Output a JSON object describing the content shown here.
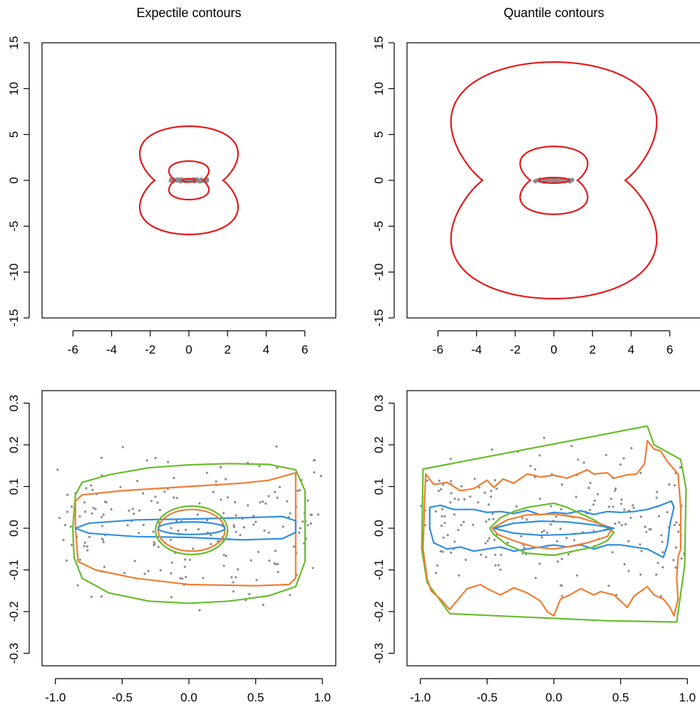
{
  "chart_data": [
    {
      "type": "contour",
      "title": "Expectile contours",
      "xlim": [
        -7.6,
        7.6
      ],
      "ylim": [
        -15,
        15
      ],
      "xticks": [
        -6,
        -4,
        -2,
        0,
        2,
        4,
        6
      ],
      "yticks": [
        -15,
        -10,
        -5,
        0,
        5,
        10,
        15
      ],
      "xticklabels": [
        "-6",
        "-4",
        "-2",
        "0",
        "2",
        "4",
        "6"
      ],
      "yticklabels": [
        "-15",
        "-10",
        "-5",
        "0",
        "5",
        "10",
        "15"
      ],
      "grid": false,
      "points_color": "#8c8c8c",
      "contours": [
        {
          "shape": "twolobe",
          "color": "#e31a1c",
          "halfwidth": 3.2,
          "height": 5.9,
          "waist": 0.45
        },
        {
          "shape": "twolobe",
          "color": "#e31a1c",
          "halfwidth": 1.3,
          "height": 2.1,
          "waist": 0.25
        },
        {
          "shape": "ellipse",
          "color": "#e31a1c",
          "rx": 0.35,
          "ry": 0.18
        }
      ],
      "points_range": {
        "x": [
          -1,
          1
        ],
        "y": [
          -0.25,
          0.25
        ]
      }
    },
    {
      "type": "contour",
      "title": "Quantile contours",
      "xlim": [
        -7.6,
        7.6
      ],
      "ylim": [
        -15,
        15
      ],
      "xticks": [
        -6,
        -4,
        -2,
        0,
        2,
        4,
        6
      ],
      "yticks": [
        -15,
        -10,
        -5,
        0,
        5,
        10,
        15
      ],
      "xticklabels": [
        "-6",
        "-4",
        "-2",
        "0",
        "2",
        "4",
        "6"
      ],
      "yticklabels": [
        "-15",
        "-10",
        "-5",
        "0",
        "5",
        "10",
        "15"
      ],
      "grid": false,
      "points_color": "#8c8c8c",
      "contours": [
        {
          "shape": "twolobe",
          "color": "#e31a1c",
          "halfwidth": 6.7,
          "height": 12.9,
          "waist": 0.35
        },
        {
          "shape": "twolobe",
          "color": "#e31a1c",
          "halfwidth": 2.2,
          "height": 3.7,
          "waist": 0.3
        },
        {
          "shape": "ellipse",
          "color": "#e31a1c",
          "rx": 0.8,
          "ry": 0.3
        }
      ],
      "points_range": {
        "x": [
          -1,
          1
        ],
        "y": [
          -0.25,
          0.25
        ]
      }
    },
    {
      "type": "contour",
      "title": "",
      "xlim": [
        -1.1,
        1.1
      ],
      "ylim": [
        -0.33,
        0.33
      ],
      "xticks": [
        -1.0,
        -0.5,
        0.0,
        0.5,
        1.0
      ],
      "yticks": [
        -0.3,
        -0.2,
        -0.1,
        0.0,
        0.1,
        0.2,
        0.3
      ],
      "xticklabels": [
        "-1.0",
        "-0.5",
        "0.0",
        "0.5",
        "1.0"
      ],
      "yticklabels": [
        "-0.3",
        "-0.2",
        "-0.1",
        "0.0",
        "0.1",
        "0.2",
        "0.3"
      ],
      "grid": false,
      "points_color": "#8c8c8c",
      "contours": [
        {
          "color": "#66bd2a",
          "points": [
            [
              -0.85,
              0.08
            ],
            [
              -0.8,
              0.11
            ],
            [
              -0.6,
              0.128
            ],
            [
              -0.3,
              0.145
            ],
            [
              0.0,
              0.152
            ],
            [
              0.3,
              0.155
            ],
            [
              0.6,
              0.153
            ],
            [
              0.8,
              0.14
            ],
            [
              0.87,
              0.09
            ],
            [
              0.87,
              -0.08
            ],
            [
              0.8,
              -0.14
            ],
            [
              0.6,
              -0.162
            ],
            [
              0.3,
              -0.175
            ],
            [
              0.0,
              -0.18
            ],
            [
              -0.3,
              -0.175
            ],
            [
              -0.6,
              -0.155
            ],
            [
              -0.8,
              -0.12
            ],
            [
              -0.86,
              -0.07
            ],
            [
              -0.87,
              0.0
            ]
          ]
        },
        {
          "color": "#f07d32",
          "points": [
            [
              -0.85,
              0.065
            ],
            [
              -0.8,
              0.08
            ],
            [
              -0.5,
              0.09
            ],
            [
              0.0,
              0.1
            ],
            [
              0.4,
              0.108
            ],
            [
              0.6,
              0.115
            ],
            [
              0.8,
              0.133
            ],
            [
              0.8,
              0.12
            ],
            [
              0.8,
              -0.12
            ],
            [
              0.75,
              -0.135
            ],
            [
              0.5,
              -0.138
            ],
            [
              0.0,
              -0.135
            ],
            [
              -0.4,
              -0.12
            ],
            [
              -0.7,
              -0.1
            ],
            [
              -0.83,
              -0.08
            ],
            [
              -0.85,
              0.0
            ]
          ]
        },
        {
          "color": "#2f8ee0",
          "points": [
            [
              -0.85,
              0.0
            ],
            [
              -0.75,
              0.012
            ],
            [
              -0.4,
              0.02
            ],
            [
              0.0,
              0.022
            ],
            [
              0.4,
              0.025
            ],
            [
              0.7,
              0.028
            ],
            [
              0.8,
              0.018
            ],
            [
              0.8,
              -0.01
            ],
            [
              0.7,
              -0.025
            ],
            [
              0.4,
              -0.028
            ],
            [
              0.0,
              -0.022
            ],
            [
              -0.4,
              -0.02
            ],
            [
              -0.75,
              -0.012
            ]
          ]
        },
        {
          "shape": "ellipse",
          "color": "#66bd2a",
          "cx": 0.02,
          "cy": -0.005,
          "rx": 0.27,
          "ry": 0.058
        },
        {
          "shape": "ellipse",
          "color": "#f07d32",
          "cx": 0.02,
          "cy": -0.005,
          "rx": 0.25,
          "ry": 0.05
        },
        {
          "shape": "ellipse",
          "color": "#2f8ee0",
          "cx": 0.02,
          "cy": 0.0,
          "rx": 0.25,
          "ry": 0.015
        }
      ],
      "points_range": {
        "x": [
          -1,
          1
        ],
        "y": [
          -0.23,
          0.25
        ]
      }
    },
    {
      "type": "contour",
      "title": "",
      "xlim": [
        -1.1,
        1.1
      ],
      "ylim": [
        -0.33,
        0.33
      ],
      "xticks": [
        -1.0,
        -0.5,
        0.0,
        0.5,
        1.0
      ],
      "yticks": [
        -0.3,
        -0.2,
        -0.1,
        0.0,
        0.1,
        0.2,
        0.3
      ],
      "xticklabels": [
        "-1.0",
        "-0.5",
        "0.0",
        "0.5",
        "1.0"
      ],
      "yticklabels": [
        "-0.3",
        "-0.2",
        "-0.1",
        "0.0",
        "0.1",
        "0.2",
        "0.3"
      ],
      "grid": false,
      "points_color": "#8c8c8c",
      "contours": [
        {
          "color": "#66bd2a",
          "points": [
            [
              -0.98,
              0.142
            ],
            [
              0.7,
              0.245
            ],
            [
              0.75,
              0.2
            ],
            [
              0.95,
              0.165
            ],
            [
              0.99,
              0.095
            ],
            [
              0.98,
              -0.09
            ],
            [
              0.92,
              -0.225
            ],
            [
              0.4,
              -0.222
            ],
            [
              -0.78,
              -0.205
            ],
            [
              -0.95,
              -0.13
            ],
            [
              -0.99,
              -0.05
            ]
          ]
        },
        {
          "color": "#f07d32",
          "points": [
            [
              -0.96,
              0.13
            ],
            [
              -0.9,
              0.105
            ],
            [
              -0.8,
              0.11
            ],
            [
              -0.7,
              0.09
            ],
            [
              -0.6,
              0.095
            ],
            [
              -0.5,
              0.115
            ],
            [
              -0.45,
              0.098
            ],
            [
              -0.38,
              0.118
            ],
            [
              -0.3,
              0.108
            ],
            [
              -0.2,
              0.13
            ],
            [
              -0.1,
              0.123
            ],
            [
              0.0,
              0.127
            ],
            [
              0.1,
              0.12
            ],
            [
              0.2,
              0.133
            ],
            [
              0.25,
              0.14
            ],
            [
              0.3,
              0.13
            ],
            [
              0.4,
              0.133
            ],
            [
              0.45,
              0.12
            ],
            [
              0.55,
              0.128
            ],
            [
              0.62,
              0.13
            ],
            [
              0.68,
              0.155
            ],
            [
              0.7,
              0.21
            ],
            [
              0.75,
              0.19
            ],
            [
              0.8,
              0.185
            ],
            [
              0.85,
              0.16
            ],
            [
              0.93,
              0.13
            ],
            [
              0.95,
              0.05
            ],
            [
              0.95,
              -0.05
            ],
            [
              0.93,
              -0.07
            ],
            [
              0.92,
              -0.12
            ],
            [
              0.93,
              -0.17
            ],
            [
              0.9,
              -0.21
            ],
            [
              0.87,
              -0.19
            ],
            [
              0.82,
              -0.17
            ],
            [
              0.75,
              -0.16
            ],
            [
              0.7,
              -0.14
            ],
            [
              0.6,
              -0.163
            ],
            [
              0.55,
              -0.19
            ],
            [
              0.45,
              -0.16
            ],
            [
              0.35,
              -0.152
            ],
            [
              0.3,
              -0.16
            ],
            [
              0.2,
              -0.145
            ],
            [
              0.12,
              -0.16
            ],
            [
              0.05,
              -0.17
            ],
            [
              0.0,
              -0.21
            ],
            [
              -0.05,
              -0.2
            ],
            [
              -0.1,
              -0.175
            ],
            [
              -0.2,
              -0.155
            ],
            [
              -0.3,
              -0.143
            ],
            [
              -0.4,
              -0.16
            ],
            [
              -0.5,
              -0.145
            ],
            [
              -0.55,
              -0.135
            ],
            [
              -0.65,
              -0.145
            ],
            [
              -0.78,
              -0.195
            ],
            [
              -0.85,
              -0.17
            ],
            [
              -0.92,
              -0.15
            ],
            [
              -0.95,
              -0.12
            ],
            [
              -0.98,
              -0.05
            ],
            [
              -0.97,
              0.05
            ]
          ]
        },
        {
          "color": "#2f8ee0",
          "points": [
            [
              -0.93,
              0.05
            ],
            [
              -0.85,
              0.055
            ],
            [
              -0.75,
              0.045
            ],
            [
              -0.6,
              0.045
            ],
            [
              -0.5,
              0.038
            ],
            [
              -0.4,
              0.04
            ],
            [
              -0.3,
              0.035
            ],
            [
              -0.2,
              0.043
            ],
            [
              -0.1,
              0.032
            ],
            [
              0.0,
              0.038
            ],
            [
              0.1,
              0.035
            ],
            [
              0.2,
              0.042
            ],
            [
              0.3,
              0.033
            ],
            [
              0.4,
              0.04
            ],
            [
              0.5,
              0.038
            ],
            [
              0.6,
              0.04
            ],
            [
              0.7,
              0.045
            ],
            [
              0.8,
              0.055
            ],
            [
              0.88,
              0.065
            ],
            [
              0.9,
              0.05
            ],
            [
              0.87,
              0.01
            ],
            [
              0.85,
              -0.04
            ],
            [
              0.82,
              -0.07
            ],
            [
              0.7,
              -0.05
            ],
            [
              0.6,
              -0.045
            ],
            [
              0.5,
              -0.04
            ],
            [
              0.4,
              -0.04
            ],
            [
              0.3,
              -0.05
            ],
            [
              0.2,
              -0.04
            ],
            [
              0.1,
              -0.045
            ],
            [
              0.0,
              -0.04
            ],
            [
              -0.1,
              -0.045
            ],
            [
              -0.2,
              -0.05
            ],
            [
              -0.3,
              -0.055
            ],
            [
              -0.4,
              -0.045
            ],
            [
              -0.5,
              -0.05
            ],
            [
              -0.6,
              -0.055
            ],
            [
              -0.7,
              -0.045
            ],
            [
              -0.8,
              -0.05
            ],
            [
              -0.9,
              -0.035
            ],
            [
              -0.93,
              0.0
            ]
          ]
        },
        {
          "color": "#66bd2a",
          "points": [
            [
              -0.48,
              0.0
            ],
            [
              -0.4,
              0.025
            ],
            [
              -0.3,
              0.04
            ],
            [
              -0.2,
              0.05
            ],
            [
              0.0,
              0.06
            ],
            [
              0.1,
              0.05
            ],
            [
              0.3,
              0.02
            ],
            [
              0.45,
              -0.01
            ],
            [
              0.4,
              -0.03
            ],
            [
              0.3,
              -0.045
            ],
            [
              0.1,
              -0.058
            ],
            [
              0.0,
              -0.065
            ],
            [
              -0.2,
              -0.06
            ],
            [
              -0.35,
              -0.04
            ],
            [
              -0.45,
              -0.015
            ]
          ]
        },
        {
          "color": "#f07d32",
          "points": [
            [
              -0.46,
              0.0
            ],
            [
              -0.35,
              0.02
            ],
            [
              -0.2,
              0.032
            ],
            [
              0.0,
              0.034
            ],
            [
              0.2,
              0.025
            ],
            [
              0.35,
              0.01
            ],
            [
              0.44,
              0.0
            ],
            [
              0.4,
              -0.02
            ],
            [
              0.25,
              -0.035
            ],
            [
              0.1,
              -0.045
            ],
            [
              0.0,
              -0.05
            ],
            [
              -0.15,
              -0.045
            ],
            [
              -0.3,
              -0.03
            ],
            [
              -0.42,
              -0.015
            ]
          ]
        },
        {
          "color": "#2f8ee0",
          "points": [
            [
              -0.45,
              0.0
            ],
            [
              -0.3,
              0.012
            ],
            [
              -0.1,
              0.017
            ],
            [
              0.1,
              0.015
            ],
            [
              0.3,
              0.008
            ],
            [
              0.45,
              0.0
            ],
            [
              0.3,
              -0.01
            ],
            [
              0.1,
              -0.015
            ],
            [
              -0.1,
              -0.017
            ],
            [
              -0.3,
              -0.012
            ]
          ]
        }
      ],
      "points_range": {
        "x": [
          -1,
          1
        ],
        "y": [
          -0.23,
          0.25
        ]
      }
    }
  ]
}
